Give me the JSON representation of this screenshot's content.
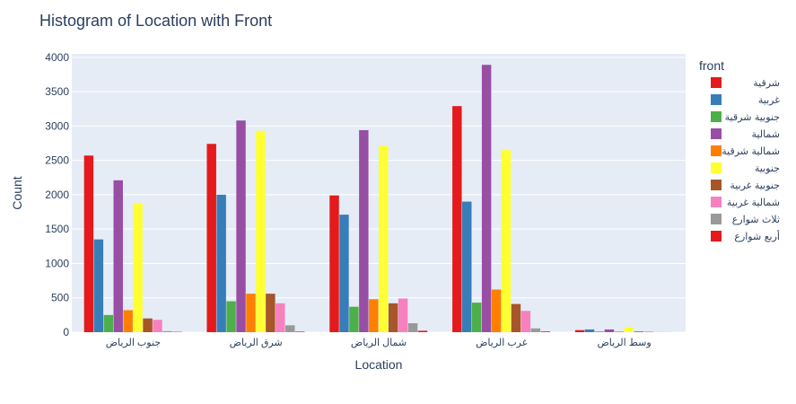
{
  "chart_data": {
    "type": "bar",
    "title": "Histogram of Location with Front",
    "xlabel": "Location",
    "ylabel": "Count",
    "ylim": [
      0,
      4050
    ],
    "yticks": [
      0,
      500,
      1000,
      1500,
      2000,
      2500,
      3000,
      3500,
      4000
    ],
    "grid": true,
    "legend_title": "front",
    "legend_position": "right",
    "plot_background": "#e5ecf6",
    "categories": [
      "جنوب الرياض",
      "شرق الرياض",
      "شمال الرياض",
      "غرب الرياض",
      "وسط الرياض"
    ],
    "series": [
      {
        "name": "شرقية",
        "color": "#e41a1c",
        "values": [
          2570,
          2740,
          1990,
          3290,
          30
        ]
      },
      {
        "name": "غربية",
        "color": "#377eb8",
        "values": [
          1350,
          2000,
          1710,
          1900,
          40
        ]
      },
      {
        "name": "جنوبية شرقية",
        "color": "#4daf4a",
        "values": [
          250,
          450,
          370,
          430,
          10
        ]
      },
      {
        "name": "شمالية",
        "color": "#984ea3",
        "values": [
          2210,
          3080,
          2940,
          3890,
          40
        ]
      },
      {
        "name": "شمالية شرقية",
        "color": "#ff7f00",
        "values": [
          320,
          560,
          480,
          620,
          10
        ]
      },
      {
        "name": "جنوبية",
        "color": "#ffff33",
        "values": [
          1880,
          2930,
          2710,
          2650,
          70
        ]
      },
      {
        "name": "جنوبية غربية",
        "color": "#a65628",
        "values": [
          200,
          560,
          420,
          410,
          10
        ]
      },
      {
        "name": "شمالية غربية",
        "color": "#f781bf",
        "values": [
          180,
          420,
          490,
          310,
          10
        ]
      },
      {
        "name": "ثلاث شوارع",
        "color": "#999999",
        "values": [
          15,
          100,
          130,
          55,
          2
        ]
      },
      {
        "name": "أربع شوارع",
        "color": "#e41a1c",
        "values": [
          5,
          8,
          20,
          10,
          1
        ]
      }
    ]
  }
}
